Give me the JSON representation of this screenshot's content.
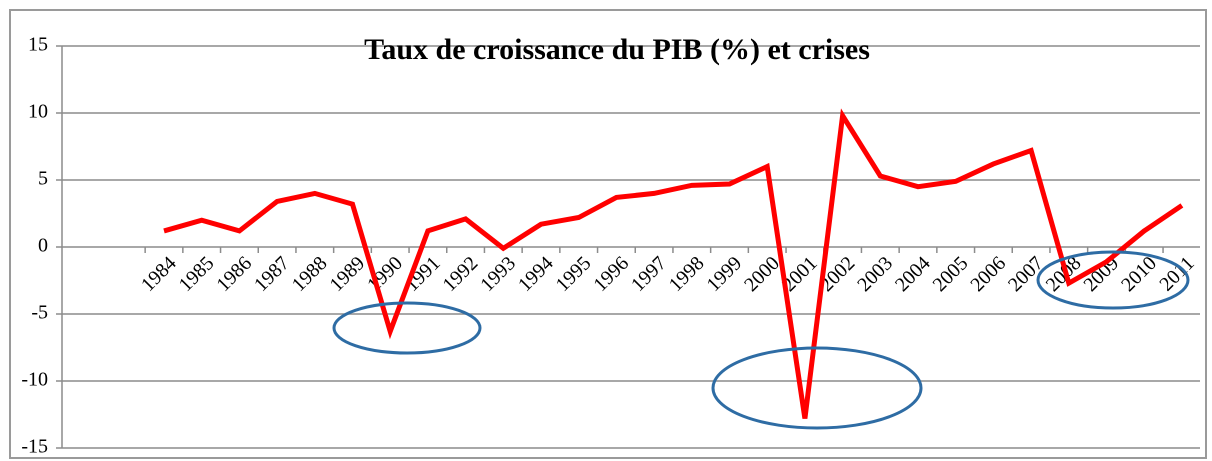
{
  "chart_data": {
    "type": "line",
    "title": "Taux de croissance du PIB (%) et crises",
    "categories": [
      "1984",
      "1985",
      "1986",
      "1987",
      "1988",
      "1989",
      "1990",
      "1991",
      "1992",
      "1993",
      "1994",
      "1995",
      "1996",
      "1997",
      "1998",
      "1999",
      "2000",
      "2001",
      "2002",
      "2003",
      "2004",
      "2005",
      "2006",
      "2007",
      "2008",
      "2009",
      "2010",
      "2011"
    ],
    "values": [
      1.2,
      2.0,
      1.2,
      3.4,
      4.0,
      3.2,
      -6.3,
      1.2,
      2.1,
      -0.1,
      1.7,
      2.2,
      3.7,
      4.0,
      4.6,
      4.7,
      6.0,
      -12.8,
      9.8,
      5.3,
      4.5,
      4.9,
      6.2,
      7.2,
      -2.7,
      -1.1,
      1.2,
      3.1
    ],
    "color": "#ff0000",
    "ylim": [
      -15,
      15
    ],
    "yticks": [
      -15,
      -10,
      -5,
      0,
      5,
      10,
      15
    ],
    "grid": true
  }
}
